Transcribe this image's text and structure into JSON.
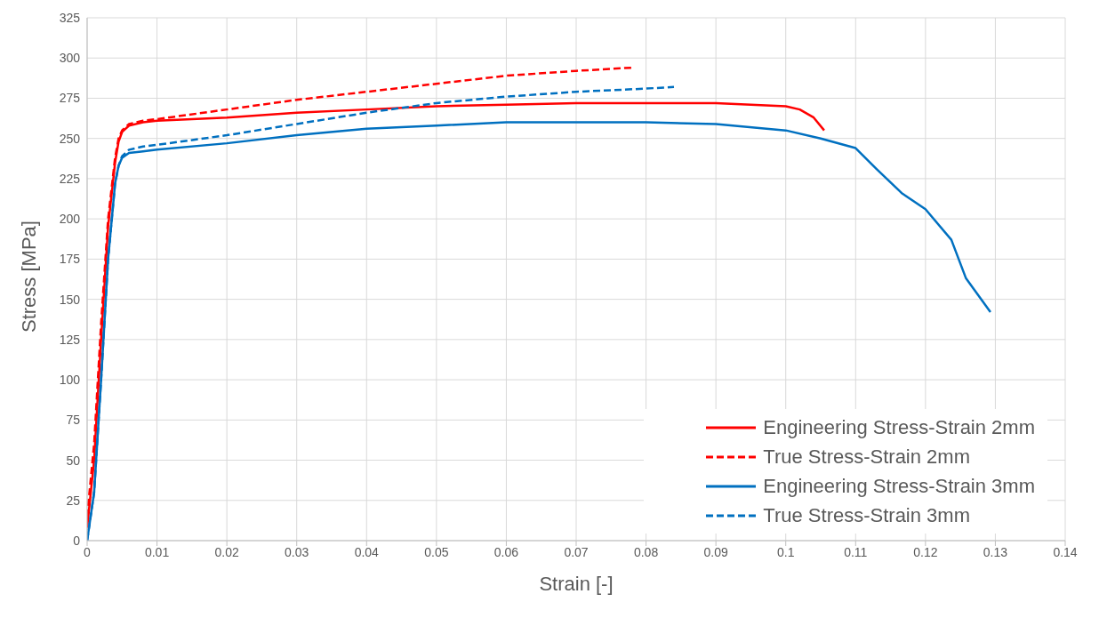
{
  "chart_data": {
    "type": "line",
    "xlabel": "Strain [-]",
    "ylabel": "Stress [MPa]",
    "xlim": [
      0,
      0.14
    ],
    "xticks": [
      0,
      0.01,
      0.02,
      0.03,
      0.04,
      0.05,
      0.06,
      0.07,
      0.08,
      0.09,
      0.1,
      0.11,
      0.12,
      0.13,
      0.14
    ],
    "ylim": [
      0,
      325
    ],
    "yticks": [
      0,
      25,
      50,
      75,
      100,
      125,
      150,
      175,
      200,
      225,
      250,
      275,
      300,
      325
    ],
    "grid": true,
    "legend": "bottom right",
    "marker": "none",
    "series": [
      {
        "name": "Engineering Stress-Strain 2mm",
        "color": "#ff0000",
        "line_style": "solid",
        "x": [
          0,
          0.001,
          0.002,
          0.003,
          0.004,
          0.0045,
          0.005,
          0.006,
          0.008,
          0.01,
          0.02,
          0.03,
          0.04,
          0.05,
          0.06,
          0.07,
          0.08,
          0.09,
          0.095,
          0.1,
          0.102,
          0.104,
          0.1055
        ],
        "values": [
          8,
          50,
          125,
          195,
          235,
          248,
          254,
          258,
          260,
          261,
          263,
          266,
          268,
          270,
          271,
          272,
          272,
          272,
          271,
          270,
          268,
          263,
          255
        ]
      },
      {
        "name": "True Stress-Strain 2mm",
        "color": "#ff0000",
        "line_style": "dashed",
        "x": [
          0,
          0.001,
          0.002,
          0.003,
          0.004,
          0.0045,
          0.005,
          0.006,
          0.008,
          0.01,
          0.02,
          0.03,
          0.04,
          0.05,
          0.06,
          0.07,
          0.078
        ],
        "values": [
          15,
          60,
          135,
          200,
          238,
          250,
          255,
          259,
          261,
          262,
          268,
          274,
          279,
          284,
          289,
          292,
          294
        ]
      },
      {
        "name": "Engineering Stress-Strain 3mm",
        "color": "#0070c0",
        "line_style": "solid",
        "x": [
          0,
          0.001,
          0.002,
          0.003,
          0.004,
          0.0045,
          0.005,
          0.006,
          0.008,
          0.01,
          0.02,
          0.03,
          0.04,
          0.05,
          0.06,
          0.07,
          0.08,
          0.09,
          0.1,
          0.105,
          0.11,
          0.113,
          0.1166,
          0.12,
          0.1237,
          0.1258,
          0.1293
        ],
        "values": [
          0,
          30,
          100,
          175,
          222,
          233,
          238,
          241,
          242,
          243,
          247,
          252,
          256,
          258,
          260,
          260,
          260,
          259,
          255,
          250,
          244,
          231,
          216,
          206,
          187,
          163,
          142
        ]
      },
      {
        "name": "True Stress-Strain 3mm",
        "color": "#0070c0",
        "line_style": "dashed",
        "x": [
          0,
          0.001,
          0.002,
          0.003,
          0.004,
          0.0045,
          0.005,
          0.006,
          0.008,
          0.01,
          0.02,
          0.03,
          0.04,
          0.05,
          0.06,
          0.07,
          0.08,
          0.084
        ],
        "values": [
          0,
          30,
          100,
          175,
          222,
          233,
          239,
          243,
          245,
          246,
          252,
          259,
          266,
          272,
          276,
          279,
          281,
          282
        ]
      }
    ]
  }
}
